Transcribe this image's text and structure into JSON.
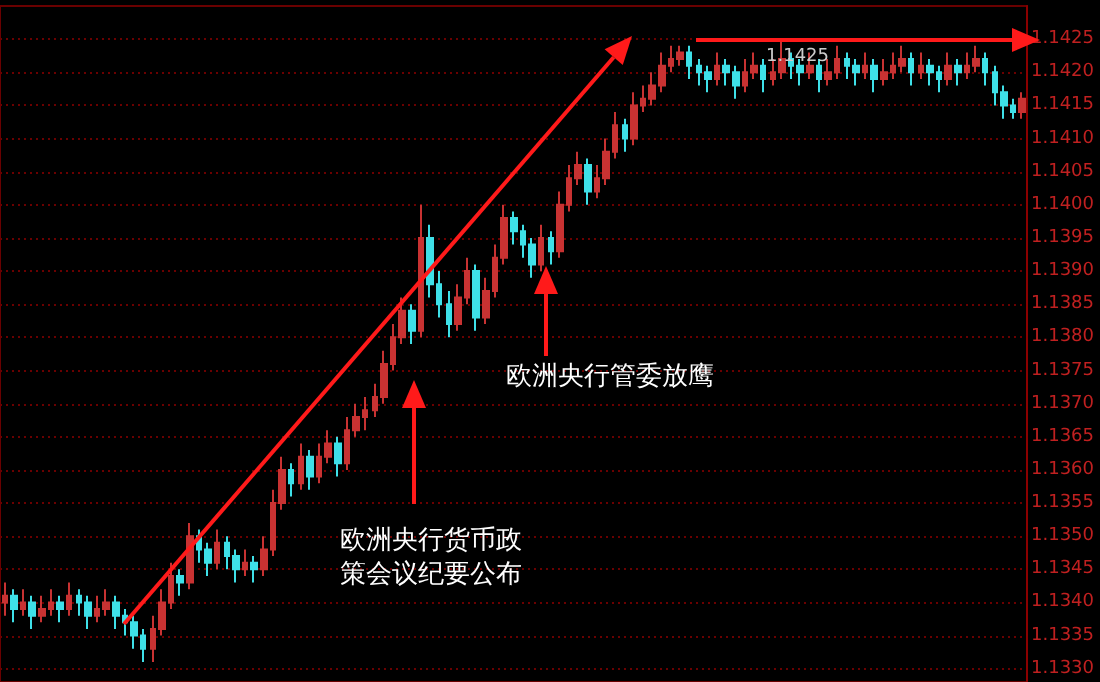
{
  "chart_data": {
    "type": "candlestick",
    "categories": [
      null,
      null,
      null,
      null,
      null,
      null,
      null,
      null,
      null,
      null,
      null,
      null,
      null,
      null,
      null,
      null,
      null,
      null,
      null,
      null,
      null,
      null,
      null,
      null,
      null,
      null,
      null,
      null,
      null,
      null,
      null,
      null,
      null,
      null,
      null,
      null,
      null,
      null,
      null,
      null,
      null,
      null,
      null,
      null,
      null,
      null,
      null,
      null,
      null,
      null,
      null,
      null,
      null,
      null,
      null,
      null,
      null,
      null,
      null,
      null,
      null,
      null,
      null,
      null,
      null,
      null,
      null,
      null,
      null,
      null,
      null,
      null,
      null,
      null,
      null,
      null,
      null,
      null,
      null,
      null,
      null,
      null,
      null,
      null,
      null,
      null,
      null,
      null,
      null,
      null,
      null,
      null,
      null,
      null,
      null,
      null,
      null,
      null,
      null,
      null,
      null,
      null,
      null,
      null,
      null,
      null,
      null,
      null,
      null,
      null,
      null
    ],
    "ohlc": [
      [
        1.134,
        1.1343,
        1.1338,
        1.1341
      ],
      [
        1.1341,
        1.1342,
        1.1337,
        1.1339
      ],
      [
        1.1339,
        1.1342,
        1.1338,
        1.134
      ],
      [
        1.134,
        1.1341,
        1.1336,
        1.1338
      ],
      [
        1.1338,
        1.1341,
        1.1337,
        1.1339
      ],
      [
        1.1339,
        1.1342,
        1.1338,
        1.134
      ],
      [
        1.134,
        1.1341,
        1.1337,
        1.1339
      ],
      [
        1.1339,
        1.1343,
        1.1338,
        1.1341
      ],
      [
        1.1341,
        1.1342,
        1.1338,
        1.134
      ],
      [
        1.134,
        1.1341,
        1.1336,
        1.1338
      ],
      [
        1.1338,
        1.1341,
        1.1337,
        1.1339
      ],
      [
        1.1339,
        1.1342,
        1.1338,
        1.134
      ],
      [
        1.134,
        1.1341,
        1.1336,
        1.1338
      ],
      [
        1.1338,
        1.1339,
        1.1335,
        1.1337
      ],
      [
        1.1337,
        1.1338,
        1.1333,
        1.1335
      ],
      [
        1.1335,
        1.1336,
        1.1331,
        1.1333
      ],
      [
        1.1333,
        1.1338,
        1.1331,
        1.1336
      ],
      [
        1.1336,
        1.1342,
        1.1335,
        1.134
      ],
      [
        1.134,
        1.1346,
        1.1339,
        1.1344
      ],
      [
        1.1344,
        1.1345,
        1.1341,
        1.1343
      ],
      [
        1.1343,
        1.1352,
        1.1342,
        1.135
      ],
      [
        1.135,
        1.1351,
        1.1346,
        1.1348
      ],
      [
        1.1348,
        1.1349,
        1.1344,
        1.1346
      ],
      [
        1.1346,
        1.1351,
        1.1345,
        1.1349
      ],
      [
        1.1349,
        1.135,
        1.1345,
        1.1347
      ],
      [
        1.1347,
        1.1348,
        1.1343,
        1.1345
      ],
      [
        1.1345,
        1.1348,
        1.1344,
        1.1346
      ],
      [
        1.1346,
        1.1347,
        1.1343,
        1.1345
      ],
      [
        1.1345,
        1.135,
        1.1344,
        1.1348
      ],
      [
        1.1348,
        1.1357,
        1.1347,
        1.1355
      ],
      [
        1.1355,
        1.1362,
        1.1354,
        1.136
      ],
      [
        1.136,
        1.1361,
        1.1356,
        1.1358
      ],
      [
        1.1358,
        1.1364,
        1.1357,
        1.1362
      ],
      [
        1.1362,
        1.1363,
        1.1357,
        1.1359
      ],
      [
        1.1359,
        1.1364,
        1.1358,
        1.1362
      ],
      [
        1.1362,
        1.1366,
        1.1361,
        1.1364
      ],
      [
        1.1364,
        1.1365,
        1.1359,
        1.1361
      ],
      [
        1.1361,
        1.1368,
        1.136,
        1.1366
      ],
      [
        1.1366,
        1.137,
        1.1365,
        1.1368
      ],
      [
        1.1368,
        1.1371,
        1.1366,
        1.1369
      ],
      [
        1.1369,
        1.1373,
        1.1368,
        1.1371
      ],
      [
        1.1371,
        1.1378,
        1.137,
        1.1376
      ],
      [
        1.1376,
        1.1382,
        1.1375,
        1.138
      ],
      [
        1.138,
        1.1386,
        1.1379,
        1.1384
      ],
      [
        1.1384,
        1.1385,
        1.1379,
        1.1381
      ],
      [
        1.1381,
        1.14,
        1.138,
        1.1395
      ],
      [
        1.1395,
        1.1397,
        1.1386,
        1.1388
      ],
      [
        1.1388,
        1.139,
        1.1383,
        1.1385
      ],
      [
        1.1385,
        1.1387,
        1.138,
        1.1382
      ],
      [
        1.1382,
        1.1388,
        1.1381,
        1.1386
      ],
      [
        1.1386,
        1.1392,
        1.1385,
        1.139
      ],
      [
        1.139,
        1.1391,
        1.1381,
        1.1383
      ],
      [
        1.1383,
        1.1389,
        1.1382,
        1.1387
      ],
      [
        1.1387,
        1.1394,
        1.1386,
        1.1392
      ],
      [
        1.1392,
        1.14,
        1.1391,
        1.1398
      ],
      [
        1.1398,
        1.1399,
        1.1394,
        1.1396
      ],
      [
        1.1396,
        1.1397,
        1.1392,
        1.1394
      ],
      [
        1.1394,
        1.1395,
        1.1389,
        1.1391
      ],
      [
        1.1391,
        1.1397,
        1.139,
        1.1395
      ],
      [
        1.1395,
        1.1396,
        1.1391,
        1.1393
      ],
      [
        1.1393,
        1.1402,
        1.1392,
        1.14
      ],
      [
        1.14,
        1.1406,
        1.1399,
        1.1404
      ],
      [
        1.1404,
        1.1408,
        1.1403,
        1.1406
      ],
      [
        1.1406,
        1.1407,
        1.14,
        1.1402
      ],
      [
        1.1402,
        1.1406,
        1.1401,
        1.1404
      ],
      [
        1.1404,
        1.141,
        1.1403,
        1.1408
      ],
      [
        1.1408,
        1.1414,
        1.1407,
        1.1412
      ],
      [
        1.1412,
        1.1413,
        1.1408,
        1.141
      ],
      [
        1.141,
        1.1417,
        1.1409,
        1.1415
      ],
      [
        1.1415,
        1.1418,
        1.1414,
        1.1416
      ],
      [
        1.1416,
        1.142,
        1.1415,
        1.1418
      ],
      [
        1.1418,
        1.1423,
        1.1417,
        1.1421
      ],
      [
        1.1421,
        1.1424,
        1.142,
        1.1422
      ],
      [
        1.1422,
        1.1424,
        1.1421,
        1.1423
      ],
      [
        1.1423,
        1.1424,
        1.1419,
        1.1421
      ],
      [
        1.1421,
        1.1422,
        1.1418,
        1.142
      ],
      [
        1.142,
        1.1421,
        1.1417,
        1.1419
      ],
      [
        1.1419,
        1.1423,
        1.1418,
        1.1421
      ],
      [
        1.1421,
        1.1422,
        1.1418,
        1.142
      ],
      [
        1.142,
        1.1421,
        1.1416,
        1.1418
      ],
      [
        1.1418,
        1.1422,
        1.1417,
        1.142
      ],
      [
        1.142,
        1.1423,
        1.1419,
        1.1421
      ],
      [
        1.1421,
        1.1422,
        1.1417,
        1.1419
      ],
      [
        1.1419,
        1.1422,
        1.1418,
        1.142
      ],
      [
        1.142,
        1.1425,
        1.1419,
        1.1422
      ],
      [
        1.1422,
        1.1423,
        1.1419,
        1.1421
      ],
      [
        1.1421,
        1.1422,
        1.1418,
        1.142
      ],
      [
        1.142,
        1.1423,
        1.1419,
        1.1421
      ],
      [
        1.1421,
        1.1422,
        1.1417,
        1.1419
      ],
      [
        1.1419,
        1.1422,
        1.1418,
        1.142
      ],
      [
        1.142,
        1.1424,
        1.1419,
        1.1422
      ],
      [
        1.1422,
        1.1423,
        1.1419,
        1.1421
      ],
      [
        1.1421,
        1.1422,
        1.1418,
        1.142
      ],
      [
        1.142,
        1.1423,
        1.1419,
        1.1421
      ],
      [
        1.1421,
        1.1422,
        1.1417,
        1.1419
      ],
      [
        1.1419,
        1.1422,
        1.1418,
        1.142
      ],
      [
        1.142,
        1.1423,
        1.1419,
        1.1421
      ],
      [
        1.1421,
        1.1424,
        1.142,
        1.1422
      ],
      [
        1.1422,
        1.1423,
        1.1418,
        1.142
      ],
      [
        1.142,
        1.1423,
        1.1419,
        1.1421
      ],
      [
        1.1421,
        1.1422,
        1.1418,
        1.142
      ],
      [
        1.142,
        1.1421,
        1.1417,
        1.1419
      ],
      [
        1.1419,
        1.1423,
        1.1418,
        1.1421
      ],
      [
        1.1421,
        1.1422,
        1.1418,
        1.142
      ],
      [
        1.142,
        1.1423,
        1.1419,
        1.1421
      ],
      [
        1.1421,
        1.1424,
        1.142,
        1.1422
      ],
      [
        1.1422,
        1.1423,
        1.1418,
        1.142
      ],
      [
        1.142,
        1.1421,
        1.1415,
        1.1417
      ],
      [
        1.1417,
        1.1418,
        1.1413,
        1.1415
      ],
      [
        1.1415,
        1.1416,
        1.1413,
        1.1414
      ],
      [
        1.1414,
        1.1417,
        1.1413,
        1.1416
      ]
    ],
    "colors": [
      "#c83232",
      "#3ee0e8",
      "#c83232",
      "#3ee0e8",
      "#c83232",
      "#c83232",
      "#3ee0e8",
      "#c83232",
      "#3ee0e8",
      "#3ee0e8",
      "#c83232",
      "#c83232",
      "#3ee0e8",
      "#3ee0e8",
      "#3ee0e8",
      "#3ee0e8",
      "#c83232",
      "#c83232",
      "#c83232",
      "#3ee0e8",
      "#c83232",
      "#3ee0e8",
      "#3ee0e8",
      "#c83232",
      "#3ee0e8",
      "#3ee0e8",
      "#c83232",
      "#3ee0e8",
      "#c83232",
      "#c83232",
      "#c83232",
      "#3ee0e8",
      "#c83232",
      "#3ee0e8",
      "#c83232",
      "#c83232",
      "#3ee0e8",
      "#c83232",
      "#c83232",
      "#c83232",
      "#c83232",
      "#c83232",
      "#c83232",
      "#c83232",
      "#3ee0e8",
      "#c83232",
      "#3ee0e8",
      "#3ee0e8",
      "#3ee0e8",
      "#c83232",
      "#c83232",
      "#3ee0e8",
      "#c83232",
      "#c83232",
      "#c83232",
      "#3ee0e8",
      "#3ee0e8",
      "#3ee0e8",
      "#c83232",
      "#3ee0e8",
      "#c83232",
      "#c83232",
      "#c83232",
      "#3ee0e8",
      "#c83232",
      "#c83232",
      "#c83232",
      "#3ee0e8",
      "#c83232",
      "#c83232",
      "#c83232",
      "#c83232",
      "#c83232",
      "#c83232",
      "#3ee0e8",
      "#3ee0e8",
      "#3ee0e8",
      "#c83232",
      "#3ee0e8",
      "#3ee0e8",
      "#c83232",
      "#c83232",
      "#3ee0e8",
      "#c83232",
      "#c83232",
      "#3ee0e8",
      "#3ee0e8",
      "#c83232",
      "#3ee0e8",
      "#c83232",
      "#c83232",
      "#3ee0e8",
      "#3ee0e8",
      "#c83232",
      "#3ee0e8",
      "#c83232",
      "#c83232",
      "#c83232",
      "#3ee0e8",
      "#c83232",
      "#3ee0e8",
      "#3ee0e8",
      "#c83232",
      "#3ee0e8",
      "#c83232",
      "#c83232",
      "#3ee0e8",
      "#3ee0e8",
      "#3ee0e8",
      "#3ee0e8",
      "#c83232"
    ],
    "ylim": [
      1.1328,
      1.143
    ],
    "yticks": [
      {
        "value": 1.133,
        "label": "1.1330"
      },
      {
        "value": 1.1335,
        "label": "1.1335"
      },
      {
        "value": 1.134,
        "label": "1.1340"
      },
      {
        "value": 1.1345,
        "label": "1.1345"
      },
      {
        "value": 1.135,
        "label": "1.1350"
      },
      {
        "value": 1.1355,
        "label": "1.1355"
      },
      {
        "value": 1.136,
        "label": "1.1360"
      },
      {
        "value": 1.1365,
        "label": "1.1365"
      },
      {
        "value": 1.137,
        "label": "1.1370"
      },
      {
        "value": 1.1375,
        "label": "1.1375"
      },
      {
        "value": 1.138,
        "label": "1.1380"
      },
      {
        "value": 1.1385,
        "label": "1.1385"
      },
      {
        "value": 1.139,
        "label": "1.1390"
      },
      {
        "value": 1.1395,
        "label": "1.1395"
      },
      {
        "value": 1.14,
        "label": "1.1400"
      },
      {
        "value": 1.1405,
        "label": "1.1405"
      },
      {
        "value": 1.141,
        "label": "1.1410"
      },
      {
        "value": 1.1415,
        "label": "1.1415"
      },
      {
        "value": 1.142,
        "label": "1.1420"
      },
      {
        "value": 1.1425,
        "label": "1.1425"
      }
    ],
    "grid": "y",
    "tick_labels": "y",
    "annotations": [
      "欧洲央行货币政策会议纪要公布",
      "欧洲央行管委放鹰",
      "1.1425"
    ]
  }
}
